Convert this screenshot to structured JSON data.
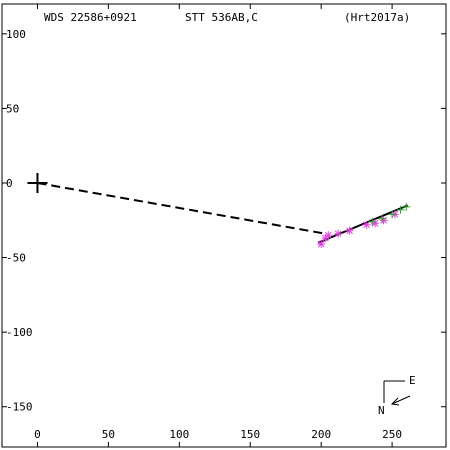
{
  "header": {
    "wds_id": "WDS 22586+0921",
    "discoverer": "STT 536AB,C",
    "reference": "(Hrt2017a)"
  },
  "compass": {
    "east_label": "E",
    "north_label": "N"
  },
  "colors": {
    "axis": "#000000",
    "background": "#ffffff",
    "fit_line": "#000000",
    "obs_magenta": "#e040e0",
    "obs_green": "#2aa02a"
  },
  "chart_data": {
    "type": "scatter",
    "title": "",
    "xlabel": "",
    "ylabel": "",
    "xlim": [
      -25,
      288
    ],
    "ylim": [
      -177,
      120
    ],
    "x_ticks": [
      0,
      50,
      100,
      150,
      200,
      250
    ],
    "y_ticks": [
      100,
      50,
      0,
      -50,
      -100,
      -150
    ],
    "x_tick_labels": [
      "0",
      "50",
      "100",
      "150",
      "200",
      "250"
    ],
    "y_tick_labels": [
      "100",
      "50",
      "0",
      "-50",
      "-100",
      "-150"
    ],
    "primary": {
      "x": 0,
      "y": 0
    },
    "dashed_connector": {
      "x": [
        0,
        203
      ],
      "y": [
        0,
        -34
      ]
    },
    "fit_line": {
      "x": [
        198,
        261
      ],
      "y": [
        -40,
        -15
      ]
    },
    "series": [
      {
        "marker": "asterisk",
        "color": "#e040e0",
        "x": [
          200,
          203,
          205,
          212,
          220,
          232,
          238,
          244,
          252
        ],
        "y": [
          -41,
          -37,
          -35,
          -34,
          -32,
          -28,
          -27,
          -25,
          -21
        ]
      },
      {
        "marker": "plus",
        "color": "#2aa02a",
        "x": [
          236,
          243,
          250,
          256,
          260
        ],
        "y": [
          -26,
          -24,
          -21,
          -18,
          -16
        ]
      }
    ]
  }
}
